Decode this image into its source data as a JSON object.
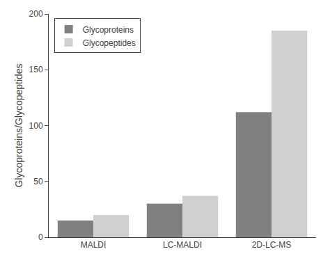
{
  "chart_data": {
    "type": "bar",
    "categories": [
      "MALDI",
      "LC-MALDI",
      "2D-LC-MS"
    ],
    "series": [
      {
        "name": "Glycoproteins",
        "color": "#808080",
        "values": [
          15,
          30,
          112
        ]
      },
      {
        "name": "Glycopeptides",
        "color": "#d0d0d0",
        "values": [
          20,
          37,
          185
        ]
      }
    ],
    "ylabel": "Glycoproteins/Glycopeptides",
    "ylim": [
      0,
      200
    ],
    "yticks": [
      0,
      50,
      100,
      150,
      200
    ],
    "grid": false,
    "legend": "upper left"
  }
}
